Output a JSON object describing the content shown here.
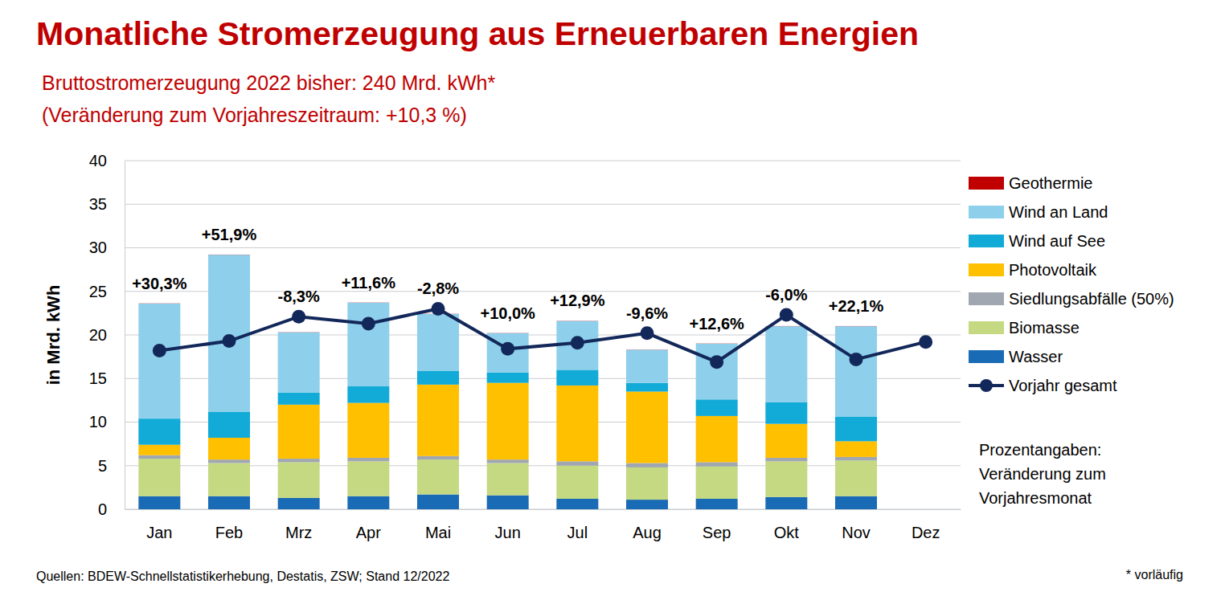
{
  "chart_data": {
    "type": "bar",
    "stacked": true,
    "grid": true,
    "legend": "right",
    "title": "Monatliche Stromerzeugung aus Erneuerbaren Energien",
    "subtitle": [
      "Bruttostromerzeugung 2022 bisher: 240 Mrd. kWh*",
      "(Veränderung zum Vorjahreszeitraum: +10,3 %)"
    ],
    "ylabel": "in Mrd. kWh",
    "categories": [
      "Jan",
      "Feb",
      "Mrz",
      "Apr",
      "Mai",
      "Jun",
      "Jul",
      "Aug",
      "Sep",
      "Okt",
      "Nov",
      "Dez"
    ],
    "ylim": [
      0,
      40
    ],
    "yticks": [
      0,
      5,
      10,
      15,
      20,
      25,
      30,
      35,
      40
    ],
    "series": [
      {
        "name": "Wasser",
        "type": "bar",
        "color": "#1a6bb5",
        "values": [
          1.5,
          1.5,
          1.3,
          1.5,
          1.7,
          1.6,
          1.2,
          1.1,
          1.2,
          1.4,
          1.5,
          null
        ]
      },
      {
        "name": "Biomasse",
        "type": "bar",
        "color": "#c4d982",
        "values": [
          4.3,
          3.8,
          4.1,
          4.0,
          4.0,
          3.7,
          3.8,
          3.7,
          3.7,
          4.1,
          4.1,
          null
        ]
      },
      {
        "name": "Siedlungsabfälle (50%)",
        "type": "bar",
        "color": "#a0a7b0",
        "values": [
          0.4,
          0.4,
          0.4,
          0.4,
          0.4,
          0.4,
          0.5,
          0.5,
          0.5,
          0.4,
          0.4,
          null
        ]
      },
      {
        "name": "Photovoltaik",
        "type": "bar",
        "color": "#ffc000",
        "values": [
          1.2,
          2.5,
          6.2,
          6.3,
          8.2,
          8.8,
          8.7,
          8.2,
          5.3,
          3.9,
          1.8,
          null
        ]
      },
      {
        "name": "Wind auf See",
        "type": "bar",
        "color": "#12aad6",
        "values": [
          3.0,
          3.0,
          1.4,
          1.9,
          1.6,
          1.2,
          1.8,
          1.0,
          1.9,
          2.5,
          2.8,
          null
        ]
      },
      {
        "name": "Wind an Land",
        "type": "bar",
        "color": "#8ed0eb",
        "values": [
          13.2,
          18.0,
          6.9,
          9.6,
          6.5,
          4.5,
          5.6,
          3.8,
          6.4,
          8.7,
          10.4,
          null
        ]
      },
      {
        "name": "Geothermie",
        "type": "bar",
        "color": "#c00000",
        "values": [
          0.02,
          0.02,
          0.02,
          0.02,
          0.02,
          0.02,
          0.02,
          0.02,
          0.02,
          0.02,
          0.02,
          null
        ]
      },
      {
        "name": "Vorjahr gesamt",
        "type": "line",
        "color": "#13285a",
        "marker": "circle",
        "line_style": "solid",
        "values": [
          18.2,
          19.3,
          22.1,
          21.3,
          23.0,
          18.4,
          19.1,
          20.2,
          16.9,
          22.3,
          17.2,
          19.2
        ]
      }
    ],
    "annotations": [
      "+30,3%",
      "+51,9%",
      "-8,3%",
      "+11,6%",
      "-2,8%",
      "+10,0%",
      "+12,9%",
      "-9,6%",
      "+12,6%",
      "-6,0%",
      "+22,1%",
      null
    ],
    "note": [
      "Prozentangaben:",
      "Veränderung zum",
      "Vorjahresmonat"
    ],
    "source": "Quellen: BDEW-Schnellstatistikerhebung, Destatis, ZSW; Stand 12/2022",
    "footnote": "* vorläufig"
  }
}
